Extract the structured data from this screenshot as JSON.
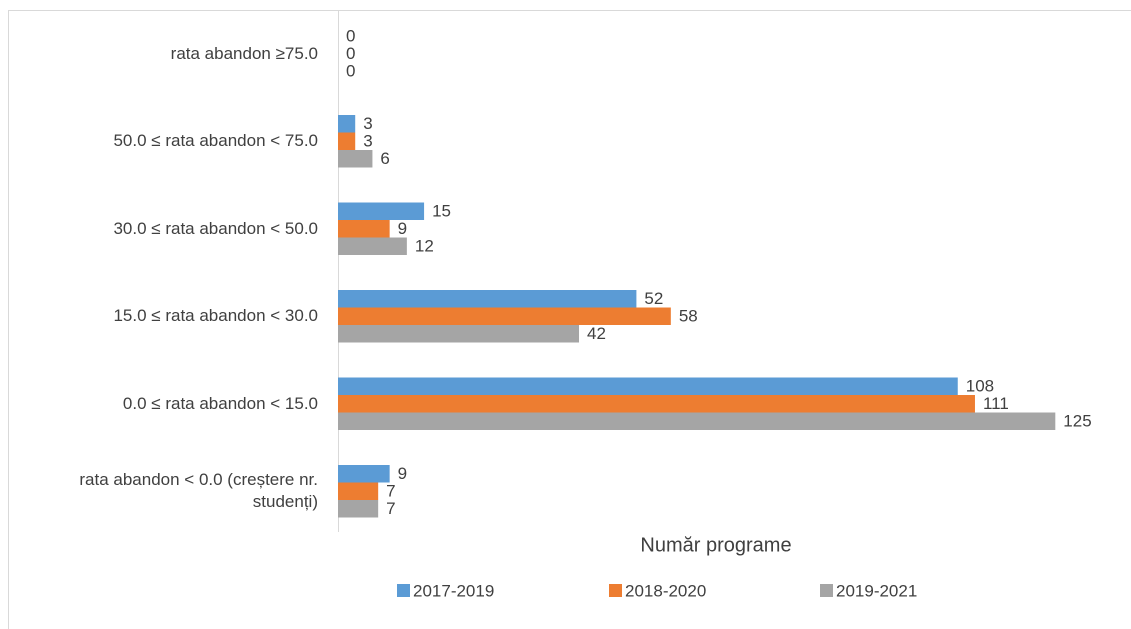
{
  "chart_data": {
    "type": "hbar",
    "categories": [
      "rata abandon ≥75.0",
      "50.0 ≤ rata abandon < 75.0",
      "30.0 ≤ rata abandon < 50.0",
      "15.0 ≤ rata abandon < 30.0",
      "0.0 ≤ rata abandon < 15.0",
      "rata abandon  < 0.0 (creștere nr. studenți)"
    ],
    "series": [
      {
        "name": "2017-2019",
        "color": "#5b9bd5",
        "values": [
          0,
          3,
          15,
          52,
          108,
          9
        ]
      },
      {
        "name": "2018-2020",
        "color": "#ed7d31",
        "values": [
          0,
          3,
          9,
          58,
          111,
          7
        ]
      },
      {
        "name": "2019-2021",
        "color": "#a5a5a5",
        "values": [
          0,
          6,
          12,
          42,
          125,
          7
        ]
      }
    ],
    "xlabel": "Număr programe",
    "xlim": [
      0,
      130
    ],
    "legend": "bottom"
  }
}
